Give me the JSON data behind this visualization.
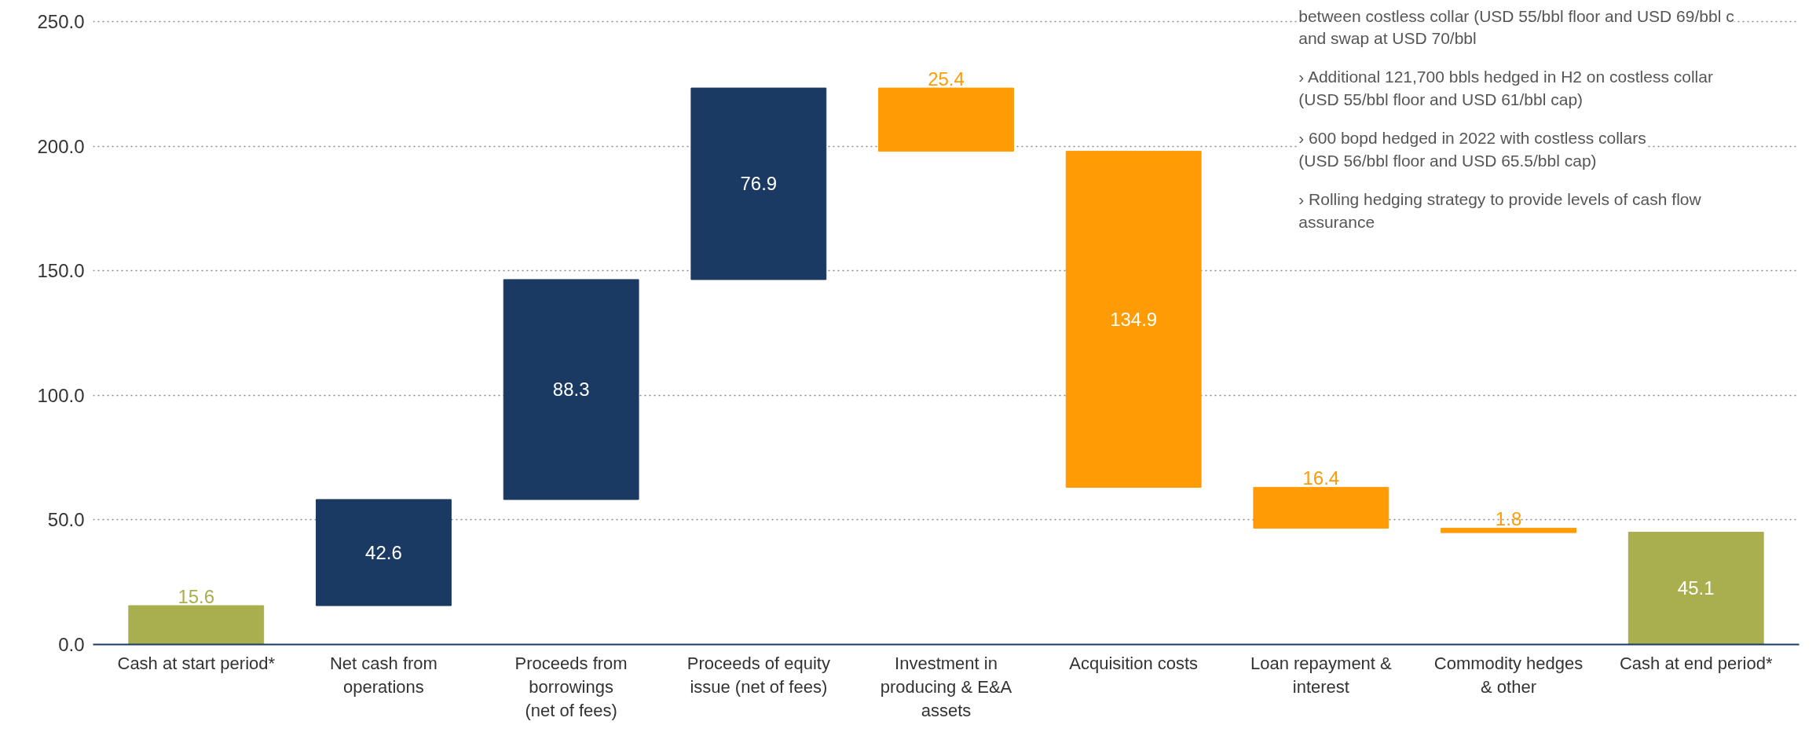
{
  "chart_data": {
    "type": "bar",
    "categories": [
      "Cash at start period*",
      "Net cash from\noperations",
      "Proceeds from\nborrowings\n(net of fees)",
      "Proceeds of equity\nissue (net of fees)",
      "Investment in\nproducing & E&A\nassets",
      "Acquisition costs",
      "Loan repayment &\ninterest",
      "Commodity hedges\n& other",
      "Cash at end period*"
    ],
    "values": [
      15.6,
      42.6,
      88.3,
      76.9,
      25.4,
      134.9,
      16.4,
      1.8,
      45.1
    ],
    "base": [
      0,
      15.6,
      58.2,
      146.5,
      198.0,
      63.1,
      46.7,
      44.9,
      0
    ],
    "colors": [
      "#a9ae4e",
      "#1b3a63",
      "#1b3a63",
      "#1b3a63",
      "#ff9b05",
      "#ff9b05",
      "#ff9b05",
      "#ff9b05",
      "#a9ae4e"
    ],
    "data_labels": true,
    "ylim": [
      0,
      257
    ],
    "yticks": [
      {
        "value": 0,
        "label": "0.0"
      },
      {
        "value": 50,
        "label": "50.0"
      },
      {
        "value": 100,
        "label": "100.0"
      },
      {
        "value": 150,
        "label": "150.0"
      },
      {
        "value": 200,
        "label": "200.0"
      },
      {
        "value": 250,
        "label": "250.0"
      }
    ],
    "grid": "y",
    "annotations": [
      "between costless collar (USD 55/bbl floor and USD 69/bbl c\nand swap at USD 70/bbl",
      "› Additional 121,700 bbls hedged in H2 on costless collar\n   (USD 55/bbl floor and USD 61/bbl cap)",
      "› 600 bopd hedged in 2022 with costless collars\n   (USD 56/bbl floor and USD 65.5/bbl cap)",
      "› Rolling hedging strategy to provide levels of cash flow\n   assurance"
    ]
  }
}
